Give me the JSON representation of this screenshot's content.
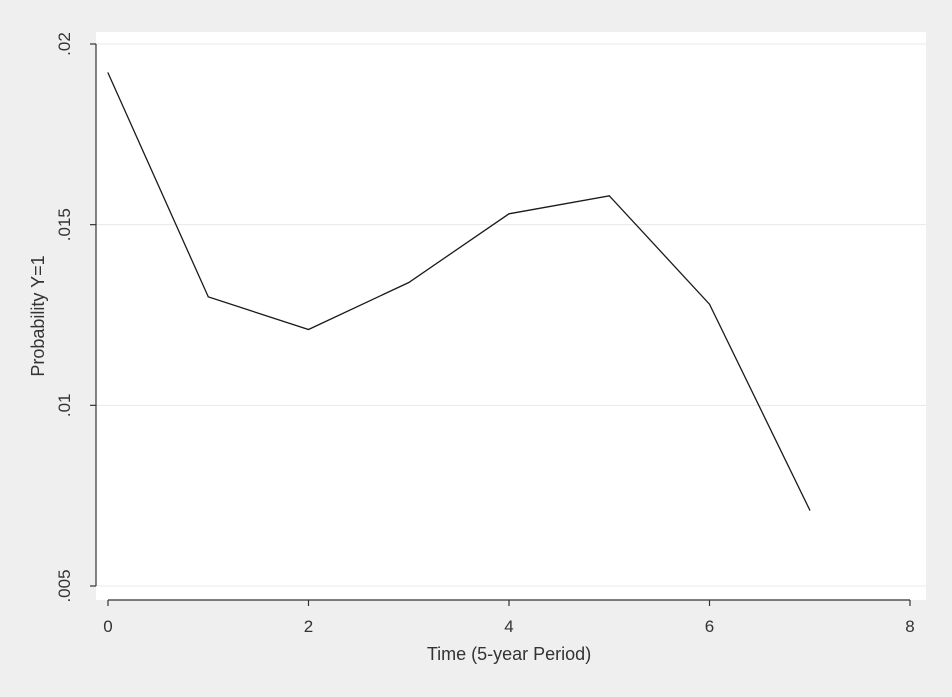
{
  "chart_data": {
    "type": "line",
    "title": "",
    "xlabel": "Time (5-year Period)",
    "ylabel": "Probability Y=1",
    "xlim": [
      0,
      8
    ],
    "ylim": [
      0.005,
      0.02
    ],
    "x_ticks": [
      0,
      2,
      4,
      6,
      8
    ],
    "x_tick_labels": [
      "0",
      "2",
      "4",
      "6",
      "8"
    ],
    "y_ticks": [
      0.005,
      0.01,
      0.015,
      0.02
    ],
    "y_tick_labels": [
      ".005",
      ".01",
      ".015",
      ".02"
    ],
    "grid": "horizontal",
    "legend": "none",
    "series": [
      {
        "x": [
          0,
          1,
          2,
          3,
          4,
          5,
          6,
          7
        ],
        "values": [
          0.0192,
          0.013,
          0.0121,
          0.0134,
          0.0153,
          0.0158,
          0.0128,
          0.0071
        ],
        "color": "#1a1a1a"
      }
    ],
    "colors": {
      "page_background": "#efefef",
      "plot_background": "#ffffff",
      "grid": "#e8e8e8",
      "axis": "#333333",
      "line": "#1a1a1a"
    }
  }
}
